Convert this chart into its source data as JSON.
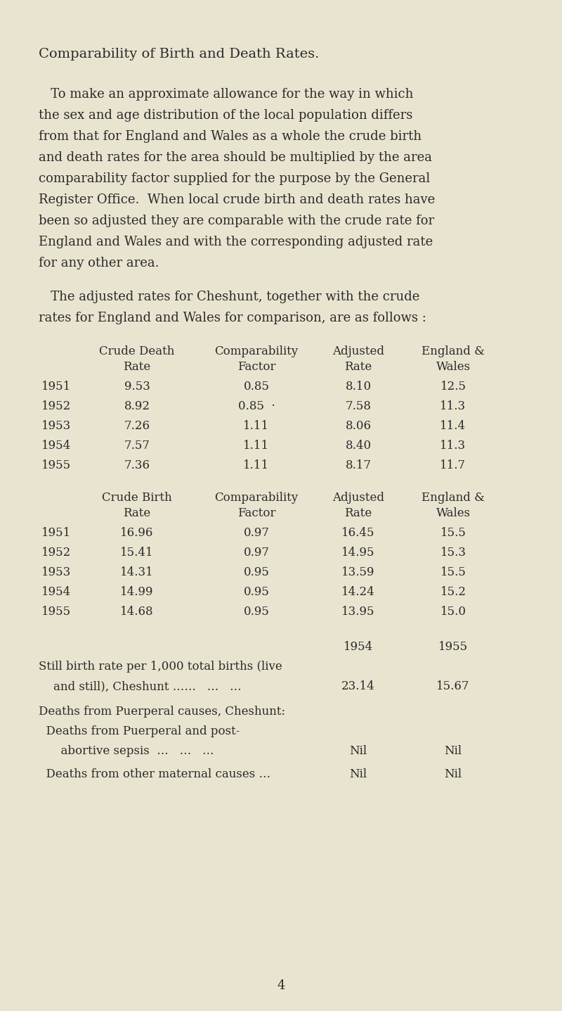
{
  "bg_color": "#e8e4d0",
  "text_color": "#2a2a2a",
  "title": "Comparability of Birth and Death Rates.",
  "paragraph1_lines": [
    "   To make an approximate allowance for the way in which",
    "the sex and age distribution of the local population differs",
    "from that for England and Wales as a whole the crude birth",
    "and death rates for the area should be multiplied by the area",
    "comparability factor supplied for the purpose by the General",
    "Register Office.  When local crude birth and death rates have",
    "been so adjusted they are comparable with the crude rate for",
    "England and Wales and with the corresponding adjusted rate",
    "for any other area."
  ],
  "paragraph2_lines": [
    "   The adjusted rates for Cheshunt, together with the crude",
    "rates for England and Wales for comparison, are as follows :"
  ],
  "death_col_labels": [
    [
      "Crude Death",
      "Rate"
    ],
    [
      "Comparability",
      "Factor"
    ],
    [
      "Adjusted",
      "Rate"
    ],
    [
      "England &",
      "Wales"
    ]
  ],
  "death_years": [
    "1951",
    "1952",
    "1953",
    "1954",
    "1955"
  ],
  "death_data": [
    [
      "9.53",
      "0.85",
      "8.10",
      "12.5"
    ],
    [
      "8.92",
      "0.85  ·",
      "7.58",
      "11.3"
    ],
    [
      "7.26",
      "1.11",
      "8.06",
      "11.4"
    ],
    [
      "7.57",
      "1.11",
      "8.40",
      "11.3"
    ],
    [
      "7.36",
      "1.11",
      "8.17",
      "11.7"
    ]
  ],
  "birth_col_labels": [
    [
      "Crude Birth",
      "Rate"
    ],
    [
      "Comparability",
      "Factor"
    ],
    [
      "Adjusted",
      "Rate"
    ],
    [
      "England &",
      "Wales"
    ]
  ],
  "birth_years": [
    "1951",
    "1952",
    "1953",
    "1954",
    "1955"
  ],
  "birth_data": [
    [
      "16.96",
      "0.97",
      "16.45",
      "15.5"
    ],
    [
      "15.41",
      "0.97",
      "14.95",
      "15.3"
    ],
    [
      "14.31",
      "0.95",
      "13.59",
      "15.5"
    ],
    [
      "14.99",
      "0.95",
      "14.24",
      "15.2"
    ],
    [
      "14.68",
      "0.95",
      "13.95",
      "15.0"
    ]
  ],
  "year_cols": [
    "1954",
    "1955"
  ],
  "stillbirth_line1": "Still birth rate per 1,000 total births (live",
  "stillbirth_line2": "    and still), Cheshunt ……   …   …",
  "stillbirth_vals": [
    "23.14",
    "15.67"
  ],
  "puerperal_header": "Deaths from Puerperal causes, Cheshunt:",
  "puerperal_sub1a": "  Deaths from Puerperal and post-",
  "puerperal_sub1b": "      abortive sepsis  …   …   …",
  "puerperal_sub1_vals": [
    "Nil",
    "Nil"
  ],
  "puerperal_sub2": "  Deaths from other maternal causes …",
  "puerperal_sub2_vals": [
    "Nil",
    "Nil"
  ],
  "page_num": "4",
  "fs_title": 14,
  "fs_body": 13,
  "fs_table": 12
}
